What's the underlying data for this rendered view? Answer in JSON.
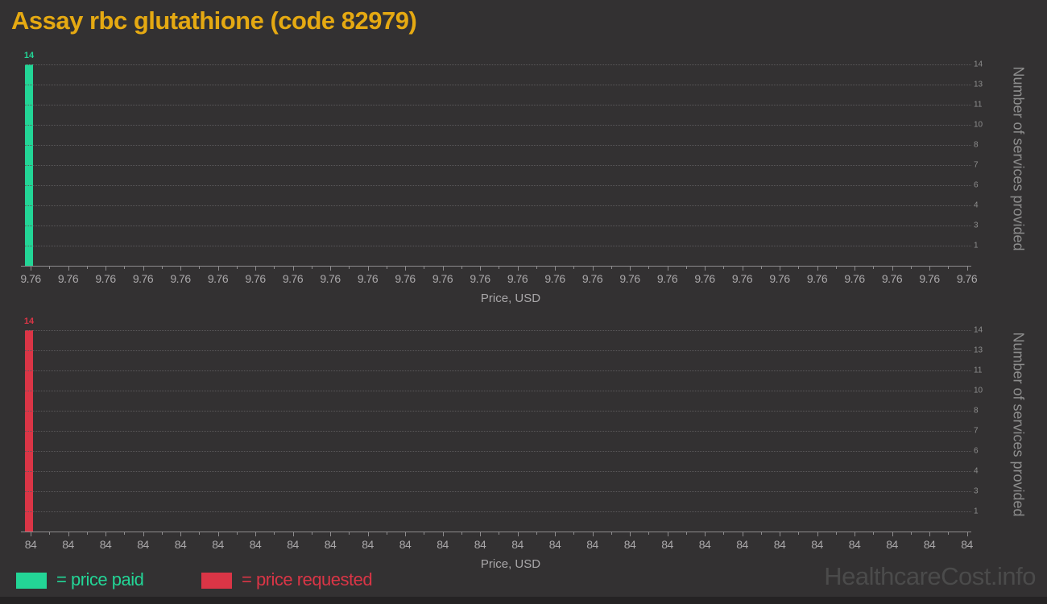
{
  "title": "Assay rbc glutathione (code 82979)",
  "watermark": "HealthcareCost.info",
  "colors": {
    "background": "#333132",
    "title": "#e5a912",
    "price_paid": "#23d596",
    "price_requested": "#da3546",
    "axis_text": "#a9a7a9",
    "grid": "#5a585a",
    "watermark": "#4b4b4b"
  },
  "legend": [
    {
      "label": "= price paid",
      "color": "#23d596"
    },
    {
      "label": "= price requested",
      "color": "#da3546"
    }
  ],
  "charts": [
    {
      "name": "price paid",
      "bar_color": "#23d596",
      "bar_label": "14",
      "bar_value": 14,
      "x_tick_label": "9.76",
      "x_tick_count": 26,
      "y_tick_labels": [
        "14",
        "13",
        "11",
        "10",
        "8",
        "7",
        "6",
        "4",
        "3",
        "1"
      ],
      "xlabel": "Price, USD",
      "ylabel": "Number of services provided"
    },
    {
      "name": "price requested",
      "bar_color": "#da3546",
      "bar_label": "14",
      "bar_value": 14,
      "x_tick_label": "84",
      "x_tick_count": 26,
      "y_tick_labels": [
        "14",
        "13",
        "11",
        "10",
        "8",
        "7",
        "6",
        "4",
        "3",
        "1"
      ],
      "xlabel": "Price, USD",
      "ylabel": "Number of services provided"
    }
  ],
  "chart_data": [
    {
      "type": "bar",
      "title": "Assay rbc glutathione (code 82979)",
      "series": [
        {
          "name": "price paid",
          "values": [
            14
          ]
        }
      ],
      "categories": [
        "9.76"
      ],
      "values": [
        14
      ],
      "xlabel": "Price, USD",
      "ylabel": "Number of services provided",
      "ylim": [
        0,
        14
      ],
      "y_axis_side": "right",
      "y_tick_labels": [
        14,
        13,
        11,
        10,
        8,
        7,
        6,
        4,
        3,
        1
      ],
      "x_tick_label_repeated": "9.76",
      "x_tick_count": 26,
      "grid": true,
      "bar_color": "#23d596",
      "legend_position": "bottom"
    },
    {
      "type": "bar",
      "title": "Assay rbc glutathione (code 82979)",
      "series": [
        {
          "name": "price requested",
          "values": [
            14
          ]
        }
      ],
      "categories": [
        "84"
      ],
      "values": [
        14
      ],
      "xlabel": "Price, USD",
      "ylabel": "Number of services provided",
      "ylim": [
        0,
        14
      ],
      "y_axis_side": "right",
      "y_tick_labels": [
        14,
        13,
        11,
        10,
        8,
        7,
        6,
        4,
        3,
        1
      ],
      "x_tick_label_repeated": "84",
      "x_tick_count": 26,
      "grid": true,
      "bar_color": "#da3546",
      "legend_position": "bottom"
    }
  ]
}
